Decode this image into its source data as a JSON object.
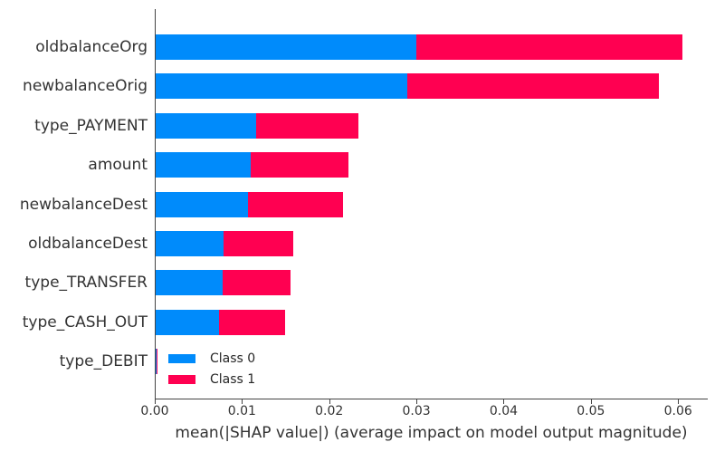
{
  "chart_data": {
    "type": "bar",
    "orientation": "horizontal",
    "stacked": true,
    "title": "",
    "xlabel": "mean(|SHAP value|) (average impact on model output magnitude)",
    "ylabel": "",
    "categories": [
      "oldbalanceOrg",
      "newbalanceOrig",
      "type_PAYMENT",
      "amount",
      "newbalanceDest",
      "oldbalanceDest",
      "type_TRANSFER",
      "type_CASH_OUT",
      "type_DEBIT"
    ],
    "series": [
      {
        "name": "Class 0",
        "color": "#008bfb",
        "values": [
          0.0299,
          0.0288,
          0.0115,
          0.0109,
          0.0106,
          0.0078,
          0.0077,
          0.0073,
          0.0001
        ]
      },
      {
        "name": "Class 1",
        "color": "#ff0051",
        "values": [
          0.0305,
          0.0289,
          0.0117,
          0.0112,
          0.0109,
          0.008,
          0.0078,
          0.0075,
          0.0001
        ]
      }
    ],
    "xlim": [
      0,
      0.0634
    ],
    "xticks": [
      0.0,
      0.01,
      0.02,
      0.03,
      0.04,
      0.05,
      0.06
    ],
    "xtick_labels": [
      "0.00",
      "0.01",
      "0.02",
      "0.03",
      "0.04",
      "0.05",
      "0.06"
    ],
    "grid": false,
    "legend": {
      "position": "lower-left-inside",
      "frame": false
    }
  },
  "colors": {
    "axis": "#444444",
    "tick_text": "#333333",
    "label_text": "#333333"
  }
}
